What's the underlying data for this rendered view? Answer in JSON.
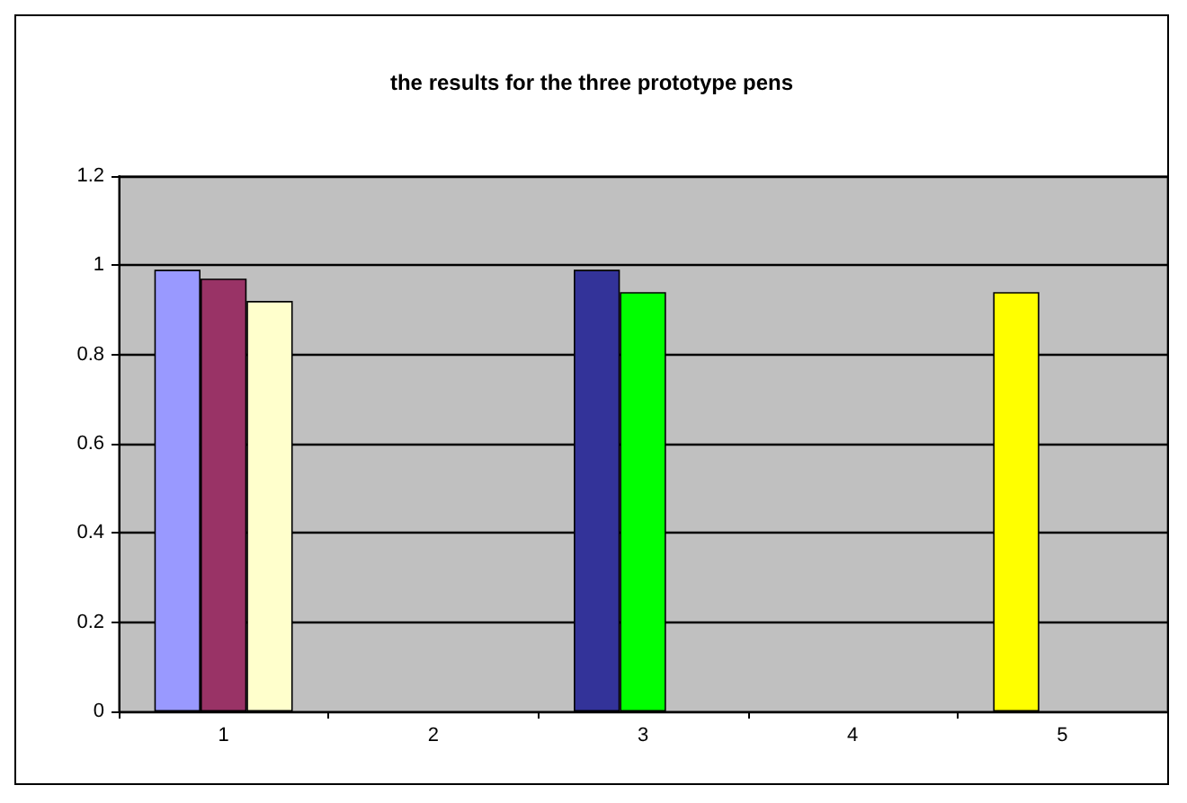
{
  "chart_data": {
    "type": "bar",
    "title": "the results for the three prototype pens",
    "categories": [
      "1",
      "2",
      "3",
      "4",
      "5"
    ],
    "series": [
      {
        "colors": [
          "#9999ff",
          null,
          "#333399",
          null,
          "#ffff00"
        ],
        "values": [
          0.99,
          null,
          0.99,
          null,
          0.94
        ]
      },
      {
        "colors": [
          "#993366",
          null,
          "#00ff00",
          null,
          null
        ],
        "values": [
          0.97,
          null,
          0.94,
          null,
          null
        ]
      },
      {
        "colors": [
          "#ffffcc",
          null,
          null,
          null,
          null
        ],
        "values": [
          0.92,
          null,
          null,
          null,
          null
        ]
      }
    ],
    "ylim": [
      0,
      1.2
    ],
    "yticks": [
      0,
      0.2,
      0.4,
      0.6,
      0.8,
      1,
      1.2
    ],
    "grid": "y"
  }
}
